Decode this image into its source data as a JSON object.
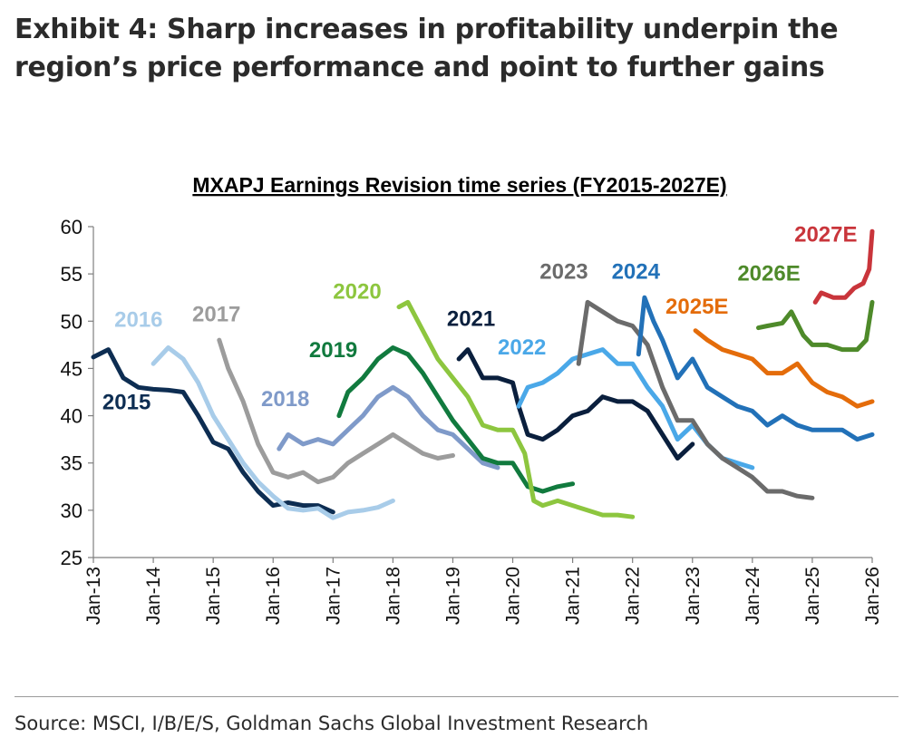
{
  "exhibit": {
    "title": "Exhibit 4: Sharp increases in profitability underpin the region’s price performance and point to further gains",
    "source": "Source: MSCI, I/B/E/S, Goldman Sachs Global Investment Research"
  },
  "chart_data": {
    "type": "line",
    "title": "MXAPJ Earnings Revision time series (FY2015-2027E)",
    "xlabel": "",
    "ylabel": "",
    "ylim": [
      25,
      60
    ],
    "xlim": [
      2013.0,
      2026.0
    ],
    "yticks": [
      25,
      30,
      35,
      40,
      45,
      50,
      55,
      60
    ],
    "xticks": [
      {
        "value": 2013,
        "label": "Jan-13"
      },
      {
        "value": 2014,
        "label": "Jan-14"
      },
      {
        "value": 2015,
        "label": "Jan-15"
      },
      {
        "value": 2016,
        "label": "Jan-16"
      },
      {
        "value": 2017,
        "label": "Jan-17"
      },
      {
        "value": 2018,
        "label": "Jan-18"
      },
      {
        "value": 2019,
        "label": "Jan-19"
      },
      {
        "value": 2020,
        "label": "Jan-20"
      },
      {
        "value": 2021,
        "label": "Jan-21"
      },
      {
        "value": 2022,
        "label": "Jan-22"
      },
      {
        "value": 2023,
        "label": "Jan-23"
      },
      {
        "value": 2024,
        "label": "Jan-24"
      },
      {
        "value": 2025,
        "label": "Jan-25"
      },
      {
        "value": 2026,
        "label": "Jan-26"
      }
    ],
    "grid": false,
    "series": [
      {
        "name": "2015",
        "color": "#0d2d52",
        "points": [
          [
            2013.0,
            46.2
          ],
          [
            2013.25,
            47.0
          ],
          [
            2013.5,
            44.0
          ],
          [
            2013.75,
            43.0
          ],
          [
            2014.0,
            42.8
          ],
          [
            2014.25,
            42.7
          ],
          [
            2014.5,
            42.5
          ],
          [
            2014.75,
            40.0
          ],
          [
            2015.0,
            37.2
          ],
          [
            2015.25,
            36.5
          ],
          [
            2015.5,
            34.0
          ],
          [
            2015.75,
            32.0
          ],
          [
            2016.0,
            30.5
          ],
          [
            2016.25,
            30.8
          ],
          [
            2016.5,
            30.5
          ],
          [
            2016.75,
            30.5
          ],
          [
            2017.0,
            29.8
          ]
        ]
      },
      {
        "name": "2016",
        "color": "#a8cce9",
        "points": [
          [
            2014.0,
            45.5
          ],
          [
            2014.25,
            47.2
          ],
          [
            2014.5,
            46.0
          ],
          [
            2014.75,
            43.5
          ],
          [
            2015.0,
            40.0
          ],
          [
            2015.25,
            37.5
          ],
          [
            2015.5,
            35.0
          ],
          [
            2015.75,
            33.0
          ],
          [
            2016.0,
            31.5
          ],
          [
            2016.25,
            30.2
          ],
          [
            2016.5,
            30.0
          ],
          [
            2016.75,
            30.2
          ],
          [
            2017.0,
            29.2
          ],
          [
            2017.25,
            29.8
          ],
          [
            2017.5,
            30.0
          ],
          [
            2017.75,
            30.3
          ],
          [
            2018.0,
            31.0
          ]
        ]
      },
      {
        "name": "2017",
        "color": "#9c9c9c",
        "points": [
          [
            2015.1,
            48.0
          ],
          [
            2015.25,
            45.0
          ],
          [
            2015.5,
            41.5
          ],
          [
            2015.75,
            37.0
          ],
          [
            2016.0,
            34.0
          ],
          [
            2016.25,
            33.5
          ],
          [
            2016.5,
            34.0
          ],
          [
            2016.75,
            33.0
          ],
          [
            2017.0,
            33.5
          ],
          [
            2017.25,
            35.0
          ],
          [
            2017.5,
            36.0
          ],
          [
            2017.75,
            37.0
          ],
          [
            2018.0,
            38.0
          ],
          [
            2018.25,
            37.0
          ],
          [
            2018.5,
            36.0
          ],
          [
            2018.75,
            35.5
          ],
          [
            2019.0,
            35.8
          ]
        ]
      },
      {
        "name": "2018",
        "color": "#7f9ac9",
        "points": [
          [
            2016.1,
            36.5
          ],
          [
            2016.25,
            38.0
          ],
          [
            2016.5,
            37.0
          ],
          [
            2016.75,
            37.5
          ],
          [
            2017.0,
            37.0
          ],
          [
            2017.25,
            38.5
          ],
          [
            2017.5,
            40.0
          ],
          [
            2017.75,
            42.0
          ],
          [
            2018.0,
            43.0
          ],
          [
            2018.25,
            42.0
          ],
          [
            2018.5,
            40.0
          ],
          [
            2018.75,
            38.5
          ],
          [
            2019.0,
            38.0
          ],
          [
            2019.25,
            36.5
          ],
          [
            2019.5,
            35.0
          ],
          [
            2019.75,
            34.5
          ]
        ]
      },
      {
        "name": "2019",
        "color": "#117a3e",
        "points": [
          [
            2017.1,
            40.0
          ],
          [
            2017.25,
            42.5
          ],
          [
            2017.5,
            44.0
          ],
          [
            2017.75,
            46.0
          ],
          [
            2018.0,
            47.2
          ],
          [
            2018.25,
            46.5
          ],
          [
            2018.5,
            44.5
          ],
          [
            2018.75,
            42.0
          ],
          [
            2019.0,
            39.5
          ],
          [
            2019.25,
            37.5
          ],
          [
            2019.5,
            35.5
          ],
          [
            2019.75,
            35.0
          ],
          [
            2020.0,
            35.0
          ],
          [
            2020.25,
            32.5
          ],
          [
            2020.5,
            32.0
          ],
          [
            2020.75,
            32.5
          ],
          [
            2021.0,
            32.8
          ]
        ]
      },
      {
        "name": "2020",
        "color": "#8dc63f",
        "points": [
          [
            2018.1,
            51.5
          ],
          [
            2018.25,
            52.0
          ],
          [
            2018.5,
            49.0
          ],
          [
            2018.75,
            46.0
          ],
          [
            2019.0,
            44.0
          ],
          [
            2019.25,
            42.0
          ],
          [
            2019.5,
            39.0
          ],
          [
            2019.75,
            38.5
          ],
          [
            2020.0,
            38.5
          ],
          [
            2020.2,
            36.0
          ],
          [
            2020.35,
            31.0
          ],
          [
            2020.5,
            30.5
          ],
          [
            2020.75,
            31.0
          ],
          [
            2021.0,
            30.5
          ],
          [
            2021.25,
            30.0
          ],
          [
            2021.5,
            29.5
          ],
          [
            2021.75,
            29.5
          ],
          [
            2022.0,
            29.3
          ]
        ]
      },
      {
        "name": "2021",
        "color": "#0a1f3d",
        "points": [
          [
            2019.1,
            46.0
          ],
          [
            2019.25,
            47.0
          ],
          [
            2019.5,
            44.0
          ],
          [
            2019.75,
            44.0
          ],
          [
            2020.0,
            43.5
          ],
          [
            2020.1,
            41.0
          ],
          [
            2020.25,
            38.0
          ],
          [
            2020.5,
            37.5
          ],
          [
            2020.75,
            38.5
          ],
          [
            2021.0,
            40.0
          ],
          [
            2021.25,
            40.5
          ],
          [
            2021.5,
            42.0
          ],
          [
            2021.75,
            41.5
          ],
          [
            2022.0,
            41.5
          ],
          [
            2022.25,
            40.5
          ],
          [
            2022.5,
            38.0
          ],
          [
            2022.75,
            35.5
          ],
          [
            2023.0,
            37.0
          ]
        ]
      },
      {
        "name": "2022",
        "color": "#4aa8e8",
        "points": [
          [
            2020.1,
            41.0
          ],
          [
            2020.25,
            43.0
          ],
          [
            2020.5,
            43.5
          ],
          [
            2020.75,
            44.5
          ],
          [
            2021.0,
            46.0
          ],
          [
            2021.25,
            46.5
          ],
          [
            2021.5,
            47.0
          ],
          [
            2021.75,
            45.5
          ],
          [
            2022.0,
            45.5
          ],
          [
            2022.25,
            43.0
          ],
          [
            2022.5,
            41.0
          ],
          [
            2022.75,
            37.5
          ],
          [
            2023.0,
            39.0
          ],
          [
            2023.25,
            37.0
          ],
          [
            2023.5,
            35.5
          ],
          [
            2023.75,
            35.0
          ],
          [
            2024.0,
            34.5
          ]
        ]
      },
      {
        "name": "2023",
        "color": "#6b6b6b",
        "points": [
          [
            2021.1,
            45.5
          ],
          [
            2021.25,
            52.0
          ],
          [
            2021.5,
            51.0
          ],
          [
            2021.75,
            50.0
          ],
          [
            2022.0,
            49.5
          ],
          [
            2022.25,
            47.5
          ],
          [
            2022.5,
            43.0
          ],
          [
            2022.75,
            39.5
          ],
          [
            2023.0,
            39.5
          ],
          [
            2023.25,
            37.0
          ],
          [
            2023.5,
            35.5
          ],
          [
            2023.75,
            34.5
          ],
          [
            2024.0,
            33.5
          ],
          [
            2024.25,
            32.0
          ],
          [
            2024.5,
            32.0
          ],
          [
            2024.75,
            31.5
          ],
          [
            2025.0,
            31.3
          ]
        ]
      },
      {
        "name": "2024",
        "color": "#2271b8",
        "points": [
          [
            2022.1,
            46.5
          ],
          [
            2022.2,
            52.5
          ],
          [
            2022.35,
            50.0
          ],
          [
            2022.5,
            48.0
          ],
          [
            2022.75,
            44.0
          ],
          [
            2023.0,
            46.0
          ],
          [
            2023.25,
            43.0
          ],
          [
            2023.5,
            42.0
          ],
          [
            2023.75,
            41.0
          ],
          [
            2024.0,
            40.5
          ],
          [
            2024.25,
            39.0
          ],
          [
            2024.5,
            40.0
          ],
          [
            2024.75,
            39.0
          ],
          [
            2025.0,
            38.5
          ],
          [
            2025.25,
            38.5
          ],
          [
            2025.5,
            38.5
          ],
          [
            2025.75,
            37.5
          ],
          [
            2026.0,
            38.0
          ]
        ]
      },
      {
        "name": "2025E",
        "color": "#e46c0a",
        "points": [
          [
            2023.05,
            49.0
          ],
          [
            2023.25,
            48.0
          ],
          [
            2023.5,
            47.0
          ],
          [
            2023.75,
            46.5
          ],
          [
            2024.0,
            46.0
          ],
          [
            2024.25,
            44.5
          ],
          [
            2024.5,
            44.5
          ],
          [
            2024.75,
            45.5
          ],
          [
            2025.0,
            43.5
          ],
          [
            2025.25,
            42.5
          ],
          [
            2025.5,
            42.0
          ],
          [
            2025.75,
            41.0
          ],
          [
            2026.0,
            41.5
          ]
        ]
      },
      {
        "name": "2026E",
        "color": "#4e8a2a",
        "points": [
          [
            2024.1,
            49.3
          ],
          [
            2024.25,
            49.5
          ],
          [
            2024.5,
            49.8
          ],
          [
            2024.65,
            51.0
          ],
          [
            2024.85,
            48.5
          ],
          [
            2025.0,
            47.5
          ],
          [
            2025.25,
            47.5
          ],
          [
            2025.5,
            47.0
          ],
          [
            2025.75,
            47.0
          ],
          [
            2025.9,
            48.0
          ],
          [
            2026.0,
            52.0
          ]
        ]
      },
      {
        "name": "2027E",
        "color": "#c9353b",
        "points": [
          [
            2025.05,
            52.0
          ],
          [
            2025.15,
            53.0
          ],
          [
            2025.35,
            52.5
          ],
          [
            2025.55,
            52.5
          ],
          [
            2025.7,
            53.5
          ],
          [
            2025.85,
            54.0
          ],
          [
            2025.95,
            55.5
          ],
          [
            2026.0,
            59.5
          ]
        ]
      }
    ],
    "series_labels": [
      {
        "series": "2015",
        "text": "2015",
        "x": 2013.15,
        "y": 40.7,
        "color": "#0d2d52",
        "weight": "bold"
      },
      {
        "series": "2016",
        "text": "2016",
        "x": 2013.35,
        "y": 49.4,
        "color": "#a8cce9",
        "weight": "bold"
      },
      {
        "series": "2017",
        "text": "2017",
        "x": 2014.65,
        "y": 50.0,
        "color": "#9c9c9c",
        "weight": "bold"
      },
      {
        "series": "2018",
        "text": "2018",
        "x": 2015.8,
        "y": 41.0,
        "color": "#7f9ac9",
        "weight": "bold"
      },
      {
        "series": "2019",
        "text": "2019",
        "x": 2016.6,
        "y": 46.2,
        "color": "#117a3e",
        "weight": "bold"
      },
      {
        "series": "2020",
        "text": "2020",
        "x": 2017.0,
        "y": 52.4,
        "color": "#8dc63f",
        "weight": "bold"
      },
      {
        "series": "2021",
        "text": "2021",
        "x": 2018.9,
        "y": 49.5,
        "color": "#0a1f3d",
        "weight": "bold"
      },
      {
        "series": "2022",
        "text": "2022",
        "x": 2019.75,
        "y": 46.5,
        "color": "#4aa8e8",
        "weight": "bold"
      },
      {
        "series": "2023",
        "text": "2023",
        "x": 2020.45,
        "y": 54.5,
        "color": "#6b6b6b",
        "weight": "bold"
      },
      {
        "series": "2024",
        "text": "2024",
        "x": 2021.65,
        "y": 54.5,
        "color": "#2271b8",
        "weight": "bold"
      },
      {
        "series": "2025E",
        "text": "2025E",
        "x": 2022.55,
        "y": 50.8,
        "color": "#e46c0a",
        "weight": "bold"
      },
      {
        "series": "2026E",
        "text": "2026E",
        "x": 2023.75,
        "y": 54.3,
        "color": "#4e8a2a",
        "weight": "bold"
      },
      {
        "series": "2027E",
        "text": "2027E",
        "x": 2024.7,
        "y": 58.4,
        "color": "#c9353b",
        "weight": "bold"
      }
    ]
  }
}
